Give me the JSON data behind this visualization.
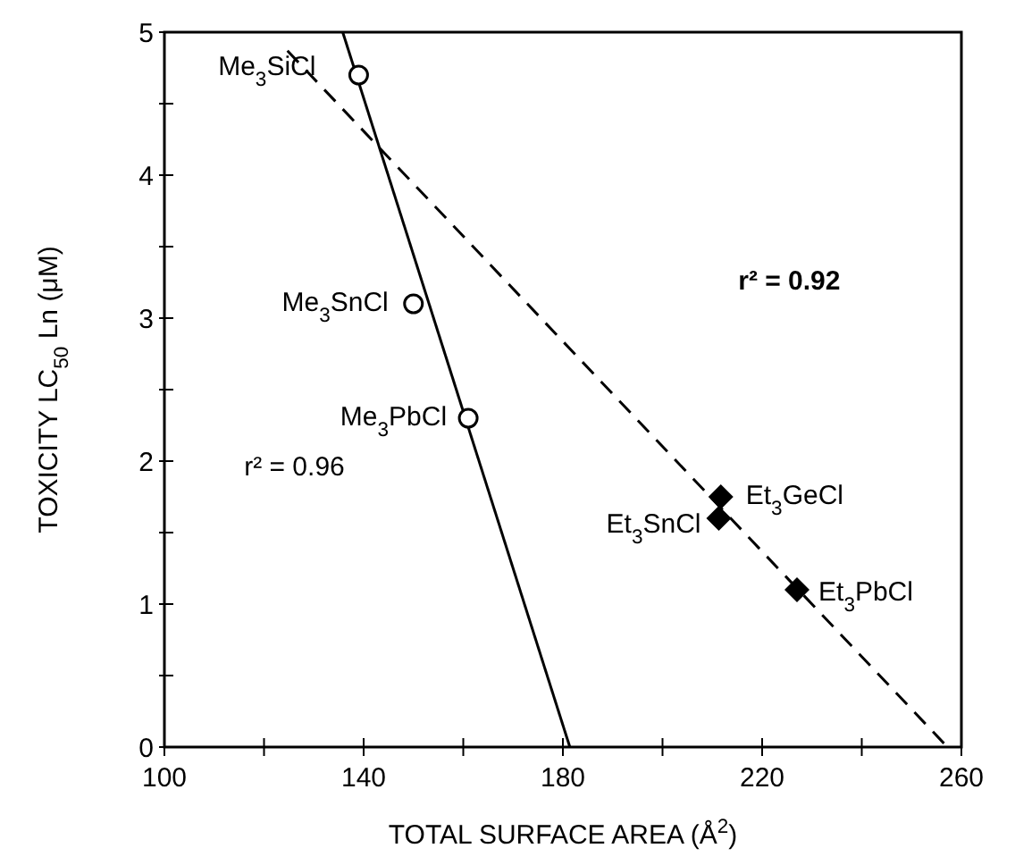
{
  "chart_data": {
    "type": "scatter",
    "xlabel": "TOTAL SURFACE AREA (Å$^{2}$)",
    "ylabel": "TOXICITY LC$_{50}$ Ln (μM)",
    "xlim": [
      100,
      260
    ],
    "ylim": [
      0,
      5
    ],
    "xticks": [
      100,
      {
        "value": 120,
        "label": null
      },
      140,
      {
        "value": 160,
        "label": null
      },
      180,
      {
        "value": 200,
        "label": null
      },
      220,
      {
        "value": 240,
        "label": null
      },
      260
    ],
    "yticks": [
      0,
      {
        "value": 0.5,
        "label": null
      },
      1,
      {
        "value": 1.5,
        "label": null
      },
      2,
      {
        "value": 2.5,
        "label": null
      },
      3,
      {
        "value": 3.5,
        "label": null
      },
      4,
      {
        "value": 4.5,
        "label": null
      },
      5
    ],
    "series": [
      {
        "type": "line",
        "color": "#000000",
        "line_style": "solid",
        "x": [
          135.8,
          181.4
        ],
        "values": [
          5,
          0
        ]
      },
      {
        "type": "line",
        "color": "#000000",
        "line_style": "dashed",
        "x": [
          124.7,
          257.2
        ],
        "values": [
          4.87,
          0
        ]
      },
      {
        "color": "#000000",
        "marker": "circle",
        "x": [
          139,
          150,
          161
        ],
        "values": [
          4.7,
          3.1,
          2.3
        ]
      },
      {
        "color": "#000000",
        "marker": "diamond",
        "x": [
          211.7,
          211.3,
          227
        ],
        "values": [
          1.75,
          1.6,
          1.1
        ]
      }
    ],
    "annotations": [
      {
        "text": "Me$_{3}$SiCl",
        "x": 139,
        "y": 4.7
      },
      {
        "text": "Me$_{3}$SnCl",
        "x": 150,
        "y": 3.1
      },
      {
        "text": "Me$_{3}$PbCl",
        "x": 161,
        "y": 2.3
      },
      {
        "text": "Et$_{3}$GeCl",
        "x": 211.7,
        "y": 1.75
      },
      {
        "text": "Et$_{3}$SnCl",
        "x": 211.3,
        "y": 1.6
      },
      {
        "text": "Et$_{3}$PbCl",
        "x": 227,
        "y": 1.1
      },
      "r² = 0.92",
      "r² = 0.96"
    ],
    "grid": false
  }
}
